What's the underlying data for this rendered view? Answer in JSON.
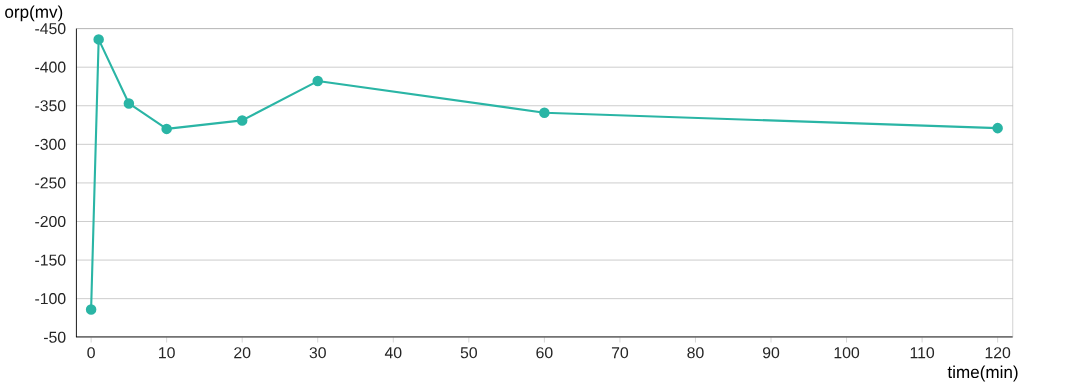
{
  "chart_data": {
    "type": "line",
    "xlabel": "time(min)",
    "ylabel": "orp(mv)",
    "x": [
      0,
      1,
      5,
      10,
      20,
      30,
      60,
      120
    ],
    "series": [
      {
        "color": "#2ab5a5",
        "values": [
          -86,
          -436,
          -353,
          -320,
          -331,
          -382,
          -341,
          -321
        ]
      }
    ],
    "xlim": [
      -2,
      122
    ],
    "xticks": [
      0,
      10,
      20,
      30,
      40,
      50,
      60,
      70,
      80,
      90,
      100,
      110,
      120
    ],
    "ylim": [
      -50,
      -450
    ],
    "yticks": [
      -50,
      -100,
      -150,
      -200,
      -250,
      -300,
      -350,
      -400,
      -450
    ],
    "grid": "y",
    "marker": "circle",
    "line_style": "solid"
  }
}
